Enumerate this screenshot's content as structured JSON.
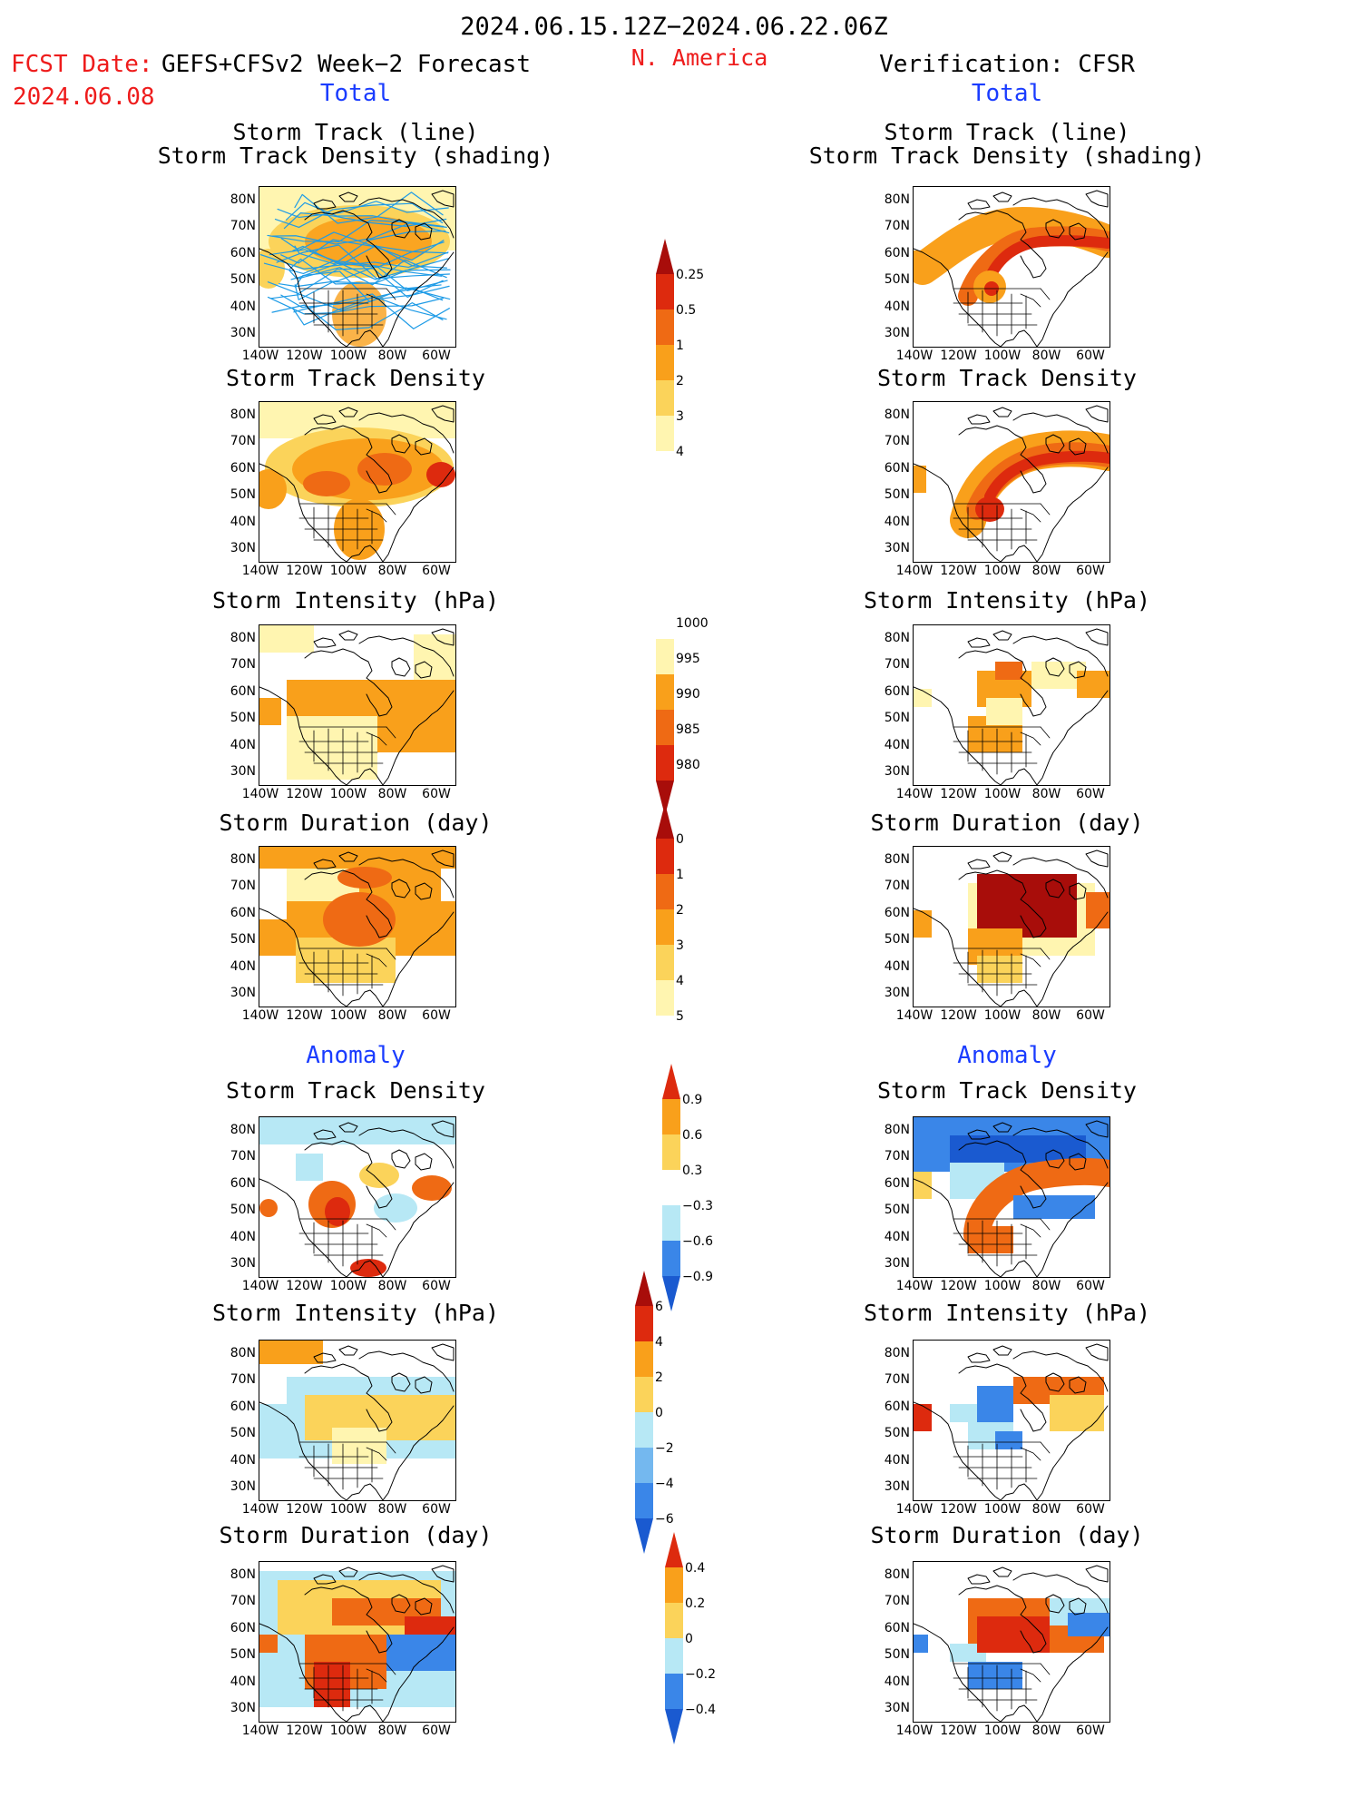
{
  "header": {
    "period": "2024.06.15.12Z−2024.06.22.06Z",
    "fcst_date_label": "FCST Date:",
    "fcst_date_value": "2024.06.08",
    "model": "GEFS+CFSv2 Week−2 Forecast",
    "region": "N. America",
    "verification": "Verification: CFSR"
  },
  "sections": {
    "total_label": "Total",
    "anomaly_label": "Anomaly"
  },
  "panel_titles": {
    "track_line": "Storm Track (line)",
    "track_density_shading": "Storm Track Density (shading)",
    "track_density": "Storm Track Density",
    "intensity": "Storm Intensity (hPa)",
    "duration": "Storm Duration (day)"
  },
  "axes": {
    "lat_ticks": [
      "80N",
      "70N",
      "60N",
      "50N",
      "40N",
      "30N"
    ],
    "lon_ticks": [
      "140W",
      "120W",
      "100W",
      "80W",
      "60W"
    ]
  },
  "colorbars": {
    "density_total": [
      "0.25",
      "0.5",
      "1",
      "2",
      "3",
      "4"
    ],
    "intensity_total": [
      "1000",
      "995",
      "990",
      "985",
      "980"
    ],
    "duration_total": [
      "0",
      "1",
      "2",
      "3",
      "4",
      "5"
    ],
    "density_anom": [
      "0.9",
      "0.6",
      "0.3",
      "−0.3",
      "−0.6",
      "−0.9"
    ],
    "intensity_anom": [
      "6",
      "4",
      "2",
      "0",
      "−2",
      "−4",
      "−6"
    ],
    "duration_anom": [
      "0.4",
      "0.2",
      "0",
      "−0.2",
      "−0.4"
    ]
  },
  "colors": {
    "c_light_yellow": "#fff5b0",
    "c_yellow": "#fbd35a",
    "c_orange": "#f9a01b",
    "c_dark_orange": "#ef6a14",
    "c_red": "#dd2a0e",
    "c_dark_red": "#a80d0a",
    "c_light_blue": "#b7e8f5",
    "c_mid_blue": "#74b8ef",
    "c_blue": "#3a86e8",
    "c_deep_blue": "#1a5ad0",
    "track_lines": "#1e9be6"
  }
}
